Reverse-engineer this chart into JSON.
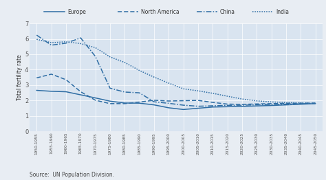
{
  "x_labels": [
    "1950-1955",
    "1955-1960",
    "1960-1965",
    "1965-1970",
    "1970-1975",
    "1975-1980",
    "1980-1985",
    "1985-1990",
    "1990-1995",
    "1995-2000",
    "2000-2005",
    "2005-2010",
    "2010-2015",
    "2015-2020",
    "2020-2025",
    "2025-2030",
    "2030-2035",
    "2035-2040",
    "2040-2045",
    "2045-2050"
  ],
  "europe": [
    2.66,
    2.6,
    2.57,
    2.37,
    2.17,
    1.96,
    1.84,
    1.83,
    1.72,
    1.53,
    1.42,
    1.5,
    1.58,
    1.6,
    1.62,
    1.65,
    1.68,
    1.72,
    1.76,
    1.8
  ],
  "north_america": [
    3.47,
    3.71,
    3.35,
    2.57,
    2.02,
    1.8,
    1.8,
    1.9,
    2.02,
    1.97,
    1.99,
    2.01,
    1.88,
    1.77,
    1.75,
    1.78,
    1.8,
    1.82,
    1.83,
    1.84
  ],
  "china": [
    6.24,
    5.59,
    5.72,
    6.06,
    4.86,
    2.8,
    2.55,
    2.5,
    1.92,
    1.82,
    1.7,
    1.63,
    1.66,
    1.69,
    1.7,
    1.72,
    1.75,
    1.77,
    1.79,
    1.81
  ],
  "india": [
    5.97,
    5.75,
    5.81,
    5.69,
    5.43,
    4.83,
    4.47,
    3.95,
    3.52,
    3.13,
    2.76,
    2.63,
    2.47,
    2.28,
    2.1,
    1.98,
    1.91,
    1.87,
    1.84,
    1.82
  ],
  "line_color": "#2e6da4",
  "plot_bg": "#d9e4f0",
  "fig_bg": "#e8edf3",
  "legend_bg": "#dde4ed",
  "ylabel": "Total fertility rate",
  "source": "Source:  UN Population Division.",
  "ylim": [
    0,
    7
  ],
  "yticks": [
    0,
    1,
    2,
    3,
    4,
    5,
    6,
    7
  ],
  "grid_color": "#ffffff",
  "tick_label_color": "#555555"
}
